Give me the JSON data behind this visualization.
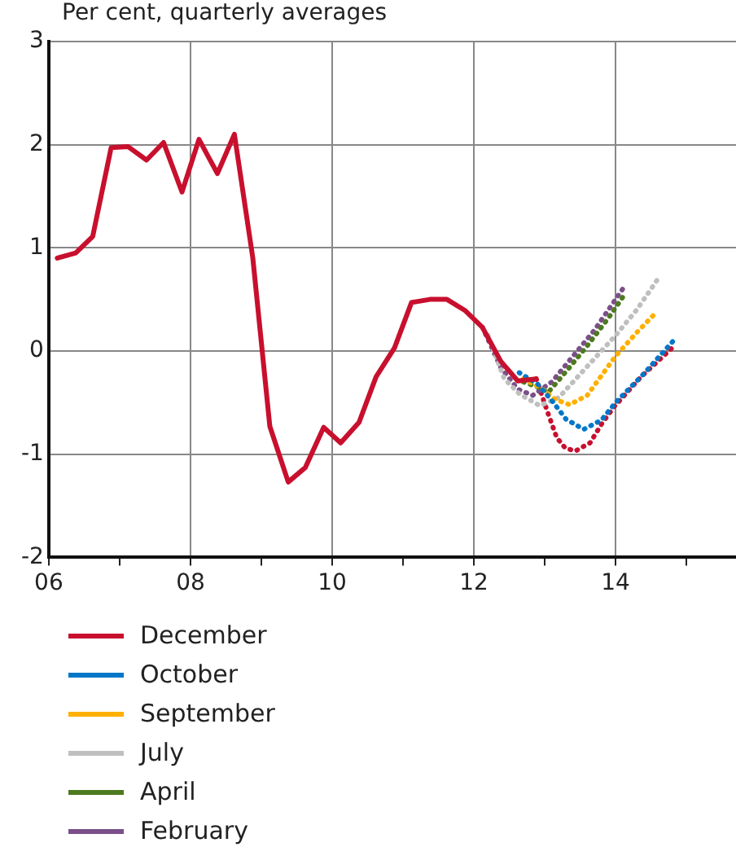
{
  "chart_data": {
    "type": "line",
    "title": "Per cent, quarterly averages",
    "xlim": [
      2006,
      2015.7
    ],
    "xticks": [
      {
        "value": 2006,
        "label": "06"
      },
      {
        "value": 2007,
        "label": null
      },
      {
        "value": 2008,
        "label": "08"
      },
      {
        "value": 2009,
        "label": null
      },
      {
        "value": 2010,
        "label": "10"
      },
      {
        "value": 2011,
        "label": null
      },
      {
        "value": 2012,
        "label": "12"
      },
      {
        "value": 2013,
        "label": null
      },
      {
        "value": 2014,
        "label": "14"
      },
      {
        "value": 2015,
        "label": null
      }
    ],
    "ylim": [
      -2,
      3
    ],
    "yticks": [
      -2,
      -1,
      0,
      1,
      2,
      3
    ],
    "grid": true,
    "legend": "bottom",
    "marker": "none",
    "series": [
      {
        "name": "December",
        "color": "#c8102e",
        "line_style": "solid",
        "x": [
          2006.12,
          2006.38,
          2006.62,
          2006.88,
          2007.12,
          2007.38,
          2007.62,
          2007.88,
          2008.12,
          2008.38,
          2008.62,
          2008.88,
          2009.12,
          2009.38,
          2009.62,
          2009.88,
          2010.12,
          2010.38,
          2010.62,
          2010.88,
          2011.12,
          2011.38,
          2011.62,
          2011.88,
          2012.12,
          2012.38,
          2012.62,
          2012.88
        ],
        "values": [
          0.9,
          0.95,
          1.11,
          1.97,
          1.98,
          1.85,
          2.02,
          1.54,
          2.05,
          1.72,
          2.1,
          0.9,
          -0.73,
          -1.27,
          -1.13,
          -0.74,
          -0.89,
          -0.69,
          -0.25,
          0.03,
          0.47,
          0.5,
          0.5,
          0.39,
          0.23,
          -0.1,
          -0.29,
          -0.27
        ]
      },
      {
        "name": "October",
        "color": "#0077c8",
        "line_style": "dotted",
        "x": [
          2012.64,
          2012.9,
          2013.1,
          2013.3,
          2013.55,
          2013.8,
          2014.0,
          2014.4,
          2014.83
        ],
        "values": [
          -0.21,
          -0.32,
          -0.48,
          -0.66,
          -0.76,
          -0.67,
          -0.5,
          -0.22,
          0.11
        ]
      },
      {
        "name": "September",
        "color": "#ffb000",
        "line_style": "dotted",
        "x": [
          2012.7,
          2012.95,
          2013.15,
          2013.35,
          2013.6,
          2014.0,
          2014.3,
          2014.57
        ],
        "values": [
          -0.27,
          -0.36,
          -0.47,
          -0.52,
          -0.43,
          -0.05,
          0.18,
          0.37
        ]
      },
      {
        "name": "July",
        "color": "#bfbfbf",
        "line_style": "dotted",
        "x": [
          2012.2,
          2012.43,
          2012.65,
          2012.93,
          2013.2,
          2013.6,
          2014.0,
          2014.3,
          2014.6
        ],
        "values": [
          0.15,
          -0.27,
          -0.42,
          -0.53,
          -0.45,
          -0.15,
          0.15,
          0.4,
          0.7
        ]
      },
      {
        "name": "April",
        "color": "#4d7a1f",
        "line_style": "dotted",
        "x": [
          2012.7,
          2012.9,
          2013.05,
          2013.3,
          2013.6,
          2013.9,
          2014.1
        ],
        "values": [
          -0.3,
          -0.35,
          -0.4,
          -0.2,
          0.05,
          0.32,
          0.52
        ]
      },
      {
        "name": "February",
        "color": "#7b4f8a",
        "line_style": "dotted",
        "x": [
          2012.12,
          2012.38,
          2012.62,
          2012.83,
          2013.1,
          2013.4,
          2013.7,
          2014.1
        ],
        "values": [
          0.23,
          -0.16,
          -0.37,
          -0.43,
          -0.3,
          -0.05,
          0.2,
          0.6
        ]
      },
      {
        "color": "#c8102e",
        "line_style": "dotted",
        "x": [
          2012.88,
          2012.93,
          2013.05,
          2013.17,
          2013.29,
          2013.43,
          2013.64,
          2013.81,
          2013.98,
          2014.36,
          2014.8
        ],
        "values": [
          -0.27,
          -0.37,
          -0.61,
          -0.84,
          -0.94,
          -0.97,
          -0.89,
          -0.7,
          -0.54,
          -0.25,
          0.03
        ]
      }
    ]
  }
}
